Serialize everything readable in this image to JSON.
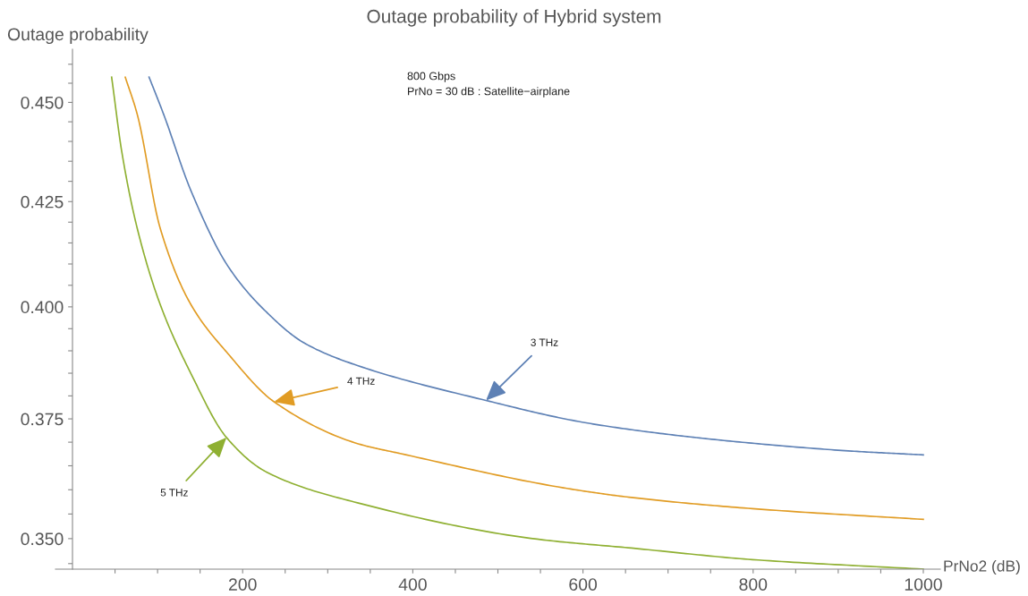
{
  "chart_data": {
    "type": "line",
    "title": "Outage probability of Hybrid system",
    "xlabel": "PrNo2 (dB)",
    "ylabel": "Outage probability",
    "log": "y",
    "grid": false,
    "marker": "none",
    "line_style": "solid",
    "xlim": [
      -20,
      1020
    ],
    "ylim": [
      0.3439,
      0.464
    ],
    "xticks": [
      {
        "value": 50,
        "label": null
      },
      {
        "value": 100,
        "label": null
      },
      {
        "value": 150,
        "label": null
      },
      200,
      {
        "value": 250,
        "label": null
      },
      {
        "value": 300,
        "label": null
      },
      {
        "value": 350,
        "label": null
      },
      400,
      {
        "value": 450,
        "label": null
      },
      {
        "value": 500,
        "label": null
      },
      {
        "value": 550,
        "label": null
      },
      600,
      {
        "value": 650,
        "label": null
      },
      {
        "value": 700,
        "label": null
      },
      {
        "value": 750,
        "label": null
      },
      800,
      {
        "value": 850,
        "label": null
      },
      {
        "value": 900,
        "label": null
      },
      {
        "value": 950,
        "label": null
      },
      1000
    ],
    "yticks": [
      {
        "value": 0.345,
        "label": null
      },
      {
        "value": 0.35,
        "label": "0.350"
      },
      {
        "value": 0.355,
        "label": null
      },
      {
        "value": 0.36,
        "label": null
      },
      {
        "value": 0.365,
        "label": null
      },
      {
        "value": 0.37,
        "label": null
      },
      0.375,
      {
        "value": 0.38,
        "label": null
      },
      {
        "value": 0.385,
        "label": null
      },
      {
        "value": 0.39,
        "label": null
      },
      {
        "value": 0.395,
        "label": null
      },
      {
        "value": 0.4,
        "label": "0.400"
      },
      {
        "value": 0.405,
        "label": null
      },
      {
        "value": 0.41,
        "label": null
      },
      {
        "value": 0.415,
        "label": null
      },
      {
        "value": 0.42,
        "label": null
      },
      0.425,
      {
        "value": 0.43,
        "label": null
      },
      {
        "value": 0.435,
        "label": null
      },
      {
        "value": 0.44,
        "label": null
      },
      {
        "value": 0.445,
        "label": null
      },
      {
        "value": 0.45,
        "label": "0.450"
      },
      {
        "value": 0.455,
        "label": null
      },
      {
        "value": 0.46,
        "label": null
      }
    ],
    "series": [
      {
        "color": "#5e81b5",
        "x": [
          90,
          107,
          139,
          183,
          228,
          272,
          335,
          486,
          599,
          694,
          798,
          916,
          1000
        ],
        "values": [
          0.4566,
          0.447,
          0.4278,
          0.4094,
          0.3988,
          0.3918,
          0.3867,
          0.379,
          0.3743,
          0.3718,
          0.3698,
          0.3681,
          0.3673
        ]
      },
      {
        "color": "#e19c24",
        "x": [
          62,
          76,
          103,
          139,
          183,
          237,
          335,
          385,
          577,
          657,
          799,
          1000
        ],
        "values": [
          0.4566,
          0.447,
          0.4186,
          0.4006,
          0.3893,
          0.3787,
          0.3697,
          0.3676,
          0.3604,
          0.3584,
          0.3561,
          0.3539
        ]
      },
      {
        "color": "#8fb032",
        "x": [
          46,
          58,
          76,
          103,
          139,
          181,
          228,
          335,
          546,
          657,
          799,
          1000
        ],
        "values": [
          0.4566,
          0.4373,
          0.4186,
          0.4006,
          0.385,
          0.371,
          0.3637,
          0.3573,
          0.3499,
          0.3481,
          0.3458,
          0.3439
        ]
      }
    ],
    "annotations": [
      "800 Gbps",
      "PrNo = 30 dB : Satellite−airplane",
      {
        "text": "3 THz",
        "x": 486,
        "y": 0.379
      },
      {
        "text": "4 THz",
        "x": 237,
        "y": 0.3787
      },
      {
        "text": "5 THz",
        "x": 181,
        "y": 0.371
      }
    ]
  }
}
